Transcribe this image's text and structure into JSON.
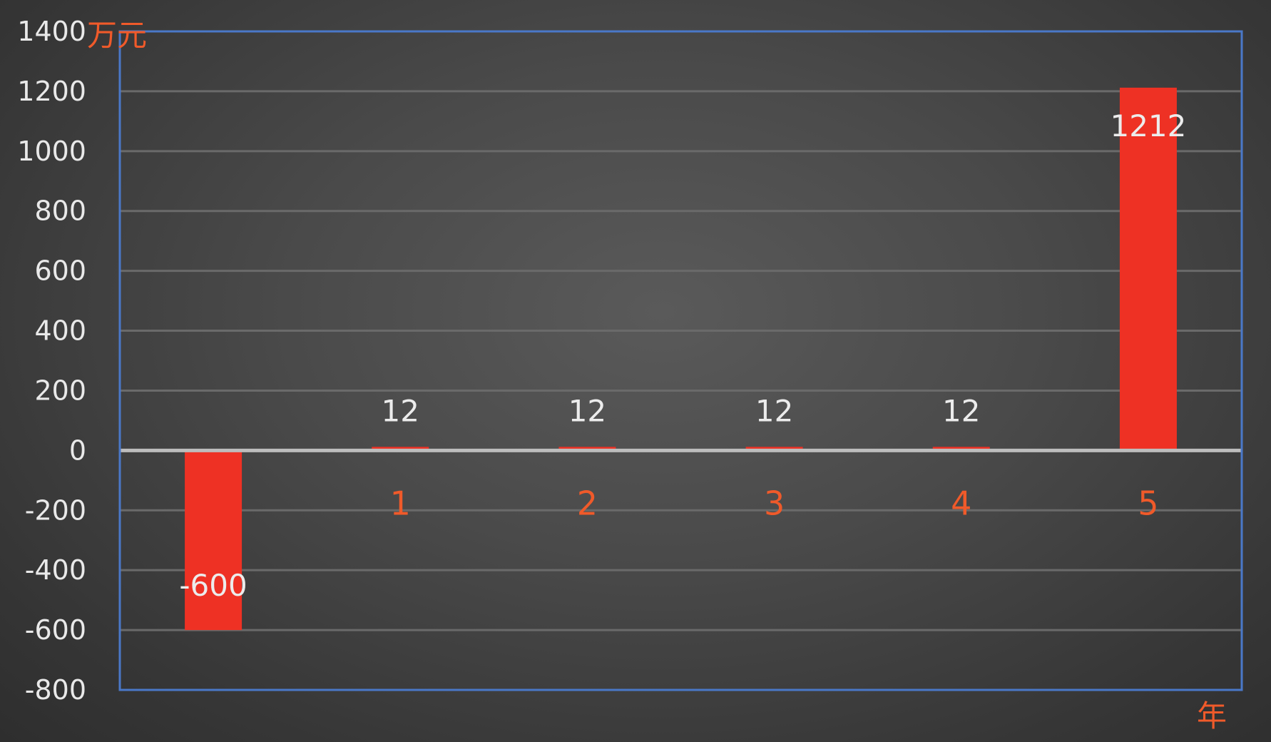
{
  "colors": {
    "bar": "#ee3124",
    "accent": "#f05a2a",
    "frame": "#4a78c8",
    "gridline": "#6a6a6a",
    "zero_line": "#bdbdbd",
    "tick_text": "#e9e9e9",
    "data_label_text": "#ececec"
  },
  "chart_data": {
    "type": "bar",
    "categories": [
      "",
      "1",
      "2",
      "3",
      "4",
      "5"
    ],
    "values": [
      -600,
      12,
      12,
      12,
      12,
      1212
    ],
    "data_labels": [
      "-600",
      "12",
      "12",
      "12",
      "12",
      "1212"
    ],
    "y_unit": "万元",
    "x_unit": "年",
    "ylim": [
      -800,
      1400
    ],
    "ytick_step": 200,
    "yticks": [
      "1400",
      "1200",
      "1000",
      "800",
      "600",
      "400",
      "200",
      "0",
      "-200",
      "-400",
      "-600",
      "-800"
    ],
    "grid": true,
    "legend": "none"
  }
}
